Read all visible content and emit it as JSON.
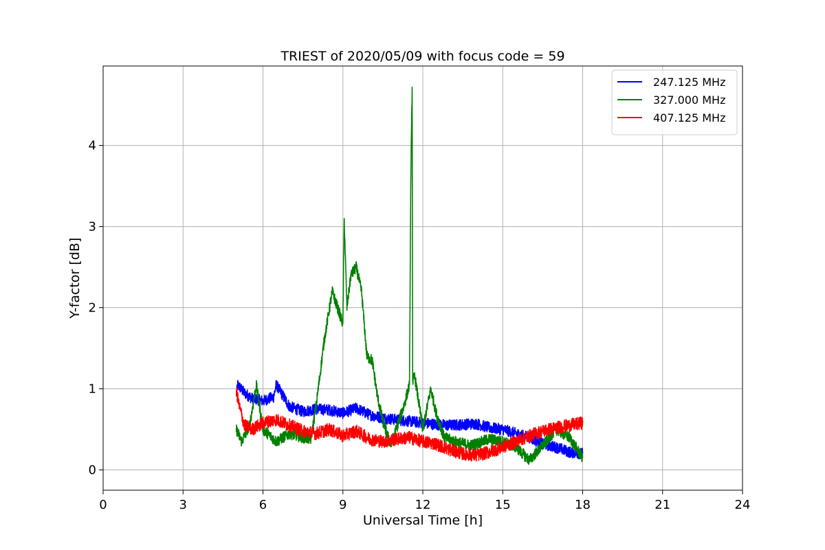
{
  "chart_data": {
    "type": "line",
    "title": "TRIEST of 2020/05/09 with focus code = 59",
    "xlabel": "Universal Time [h]",
    "ylabel": "Y-factor [dB]",
    "xlim": [
      0,
      24
    ],
    "ylim": [
      -0.25,
      4.98
    ],
    "xticks": [
      0,
      3,
      6,
      9,
      12,
      15,
      18,
      21,
      24
    ],
    "yticks": [
      0,
      1,
      2,
      3,
      4
    ],
    "grid": true,
    "legend_position": "top-right",
    "series": [
      {
        "name": "247.125 MHz",
        "color": "#0000ff",
        "x": [
          5.0,
          5.05,
          5.3,
          5.6,
          6.0,
          6.4,
          6.5,
          7.0,
          7.5,
          8.0,
          8.5,
          9.0,
          9.5,
          10.0,
          10.5,
          11.0,
          11.5,
          12.0,
          12.5,
          13.0,
          13.5,
          14.0,
          14.5,
          15.0,
          15.5,
          16.0,
          16.5,
          17.0,
          17.5,
          18.0
        ],
        "y": [
          0.92,
          1.05,
          0.95,
          0.88,
          0.85,
          0.9,
          1.05,
          0.78,
          0.72,
          0.75,
          0.74,
          0.7,
          0.76,
          0.68,
          0.64,
          0.62,
          0.6,
          0.58,
          0.56,
          0.55,
          0.56,
          0.57,
          0.52,
          0.5,
          0.45,
          0.4,
          0.32,
          0.28,
          0.22,
          0.2
        ]
      },
      {
        "name": "327.000 MHz",
        "color": "#008000",
        "x": [
          5.0,
          5.2,
          5.5,
          5.75,
          6.0,
          6.5,
          7.0,
          7.5,
          7.8,
          8.0,
          8.3,
          8.6,
          8.8,
          9.0,
          9.05,
          9.15,
          9.3,
          9.5,
          9.7,
          9.9,
          10.1,
          10.3,
          10.5,
          10.8,
          11.0,
          11.3,
          11.5,
          11.55,
          11.6,
          11.62,
          11.7,
          12.0,
          12.3,
          12.5,
          12.8,
          13.2,
          13.8,
          14.5,
          15.0,
          15.5,
          16.0,
          16.5,
          17.0,
          17.5,
          18.0
        ],
        "y": [
          0.5,
          0.35,
          0.55,
          1.05,
          0.5,
          0.35,
          0.45,
          0.4,
          0.38,
          0.8,
          1.6,
          2.2,
          2.0,
          1.8,
          3.1,
          2.0,
          2.4,
          2.5,
          2.2,
          1.4,
          1.35,
          0.9,
          0.6,
          0.3,
          0.5,
          0.8,
          1.05,
          3.6,
          4.72,
          1.1,
          1.15,
          0.5,
          1.0,
          0.7,
          0.4,
          0.35,
          0.3,
          0.38,
          0.35,
          0.28,
          0.12,
          0.3,
          0.5,
          0.4,
          0.15
        ]
      },
      {
        "name": "407.125 MHz",
        "color": "#ff0000",
        "x": [
          5.0,
          5.1,
          5.3,
          5.6,
          6.0,
          6.5,
          7.0,
          7.5,
          8.0,
          8.5,
          9.0,
          9.5,
          10.0,
          10.5,
          11.0,
          11.5,
          12.0,
          12.5,
          13.0,
          13.5,
          14.0,
          14.5,
          15.0,
          15.5,
          16.0,
          16.5,
          17.0,
          17.5,
          18.0
        ],
        "y": [
          0.98,
          0.8,
          0.55,
          0.5,
          0.58,
          0.62,
          0.55,
          0.48,
          0.45,
          0.5,
          0.42,
          0.48,
          0.38,
          0.35,
          0.38,
          0.4,
          0.35,
          0.32,
          0.25,
          0.2,
          0.18,
          0.22,
          0.28,
          0.35,
          0.42,
          0.48,
          0.52,
          0.55,
          0.58
        ]
      }
    ]
  }
}
